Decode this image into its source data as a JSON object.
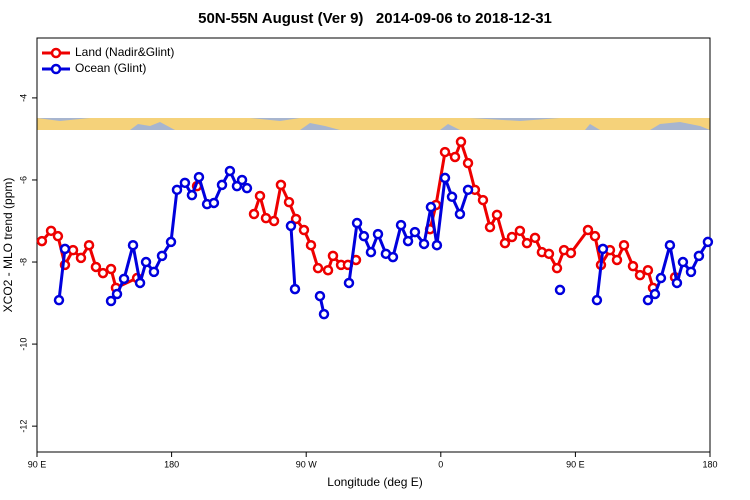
{
  "chart_data": {
    "type": "line",
    "title": "50N-55N August (Ver 9)   2014-09-06 to 2018-12-31",
    "xlabel": "Longitude (deg E)",
    "ylabel": "XCO2 - MLO trend (ppm)",
    "xlim": [
      90,
      540
    ],
    "xticks": [
      {
        "value": 90,
        "label": "90 E"
      },
      180,
      {
        "value": 270,
        "label": "90 W"
      },
      {
        "value": 360,
        "label": "0"
      },
      {
        "value": 450,
        "label": "90 E"
      },
      {
        "value": 540,
        "label": "180"
      }
    ],
    "ylim": [
      -12.63,
      -2.54
    ],
    "yticks": [
      -4,
      -6,
      -8,
      -10,
      -12
    ],
    "legend": "top-left",
    "series": [
      {
        "name": "Land (Nadir&Glint)",
        "color": "#ee0000",
        "x": [
          93.3,
          99.4,
          104.0,
          108.7,
          114.1,
          119.4,
          124.8,
          129.4,
          134.1,
          139.5,
          142.8,
          156.9,
          null,
          197.0,
          null,
          235.1,
          239.1,
          243.1,
          248.5,
          253.1,
          258.5,
          263.2,
          268.5,
          273.2,
          277.9,
          284.6,
          287.9,
          293.3,
          297.9,
          303.3,
          null,
          352.8,
          356.8,
          362.8,
          369.5,
          373.5,
          378.2,
          382.8,
          388.2,
          392.9,
          397.6,
          402.9,
          407.6,
          412.9,
          417.6,
          423.0,
          427.6,
          432.3,
          437.7,
          442.4,
          447.0,
          458.4,
          463.1,
          467.1,
          473.1,
          477.8,
          482.5,
          488.5,
          493.2,
          498.5,
          501.9,
          null,
          516.6
        ],
        "values": [
          -7.49,
          -7.24,
          -7.37,
          -8.07,
          -7.71,
          -7.9,
          -7.59,
          -8.12,
          -8.27,
          -8.17,
          -8.63,
          -8.39,
          null,
          -6.15,
          null,
          -6.83,
          -6.39,
          -6.93,
          -7.0,
          -6.12,
          -6.54,
          -6.95,
          -7.22,
          -7.59,
          -8.15,
          -8.2,
          -7.85,
          -8.07,
          -8.07,
          -7.95,
          null,
          -7.2,
          -6.61,
          -5.32,
          -5.44,
          -5.07,
          -5.59,
          -6.24,
          -6.49,
          -7.15,
          -6.85,
          -7.54,
          -7.39,
          -7.24,
          -7.54,
          -7.41,
          -7.76,
          -7.8,
          -8.15,
          -7.71,
          -7.78,
          -7.22,
          -7.37,
          -8.07,
          -7.71,
          -7.95,
          -7.59,
          -8.1,
          -8.32,
          -8.2,
          -8.63,
          null,
          -8.37
        ]
      },
      {
        "name": "Ocean (Glint)",
        "color": "#0000dd",
        "x": [
          104.7,
          108.7,
          null,
          139.5,
          143.5,
          148.2,
          154.2,
          158.9,
          162.9,
          168.2,
          173.6,
          179.6,
          183.6,
          188.9,
          193.6,
          198.3,
          203.7,
          208.3,
          213.7,
          219.0,
          223.7,
          227.1,
          230.4,
          null,
          259.8,
          262.5,
          null,
          279.2,
          281.9,
          null,
          298.6,
          304.0,
          308.6,
          313.3,
          318.0,
          323.3,
          328.0,
          333.4,
          338.1,
          342.7,
          348.8,
          353.4,
          357.4,
          362.8,
          367.5,
          372.8,
          378.2,
          null,
          439.7,
          null,
          464.4,
          468.4,
          null,
          498.5,
          503.2,
          507.2,
          513.2,
          517.9,
          521.9,
          527.3,
          532.6,
          538.6
        ],
        "values": [
          -8.93,
          -7.68,
          null,
          -8.95,
          -8.78,
          -8.41,
          -7.59,
          -8.51,
          -8.0,
          -8.24,
          -7.85,
          -7.51,
          -6.24,
          -6.07,
          -6.37,
          -5.93,
          -6.59,
          -6.56,
          -6.12,
          -5.78,
          -6.15,
          -6.0,
          -6.2,
          null,
          -7.12,
          -8.66,
          null,
          -8.83,
          -9.27,
          null,
          -8.51,
          -7.05,
          -7.37,
          -7.76,
          -7.32,
          -7.8,
          -7.88,
          -7.1,
          -7.49,
          -7.27,
          -7.56,
          -6.66,
          -7.59,
          -5.95,
          -6.41,
          -6.83,
          -6.24,
          null,
          -8.68,
          null,
          -8.93,
          -7.68,
          null,
          -8.93,
          -8.78,
          -8.39,
          -7.59,
          -8.51,
          -8.0,
          -8.24,
          -7.85,
          -7.51
        ]
      }
    ]
  }
}
